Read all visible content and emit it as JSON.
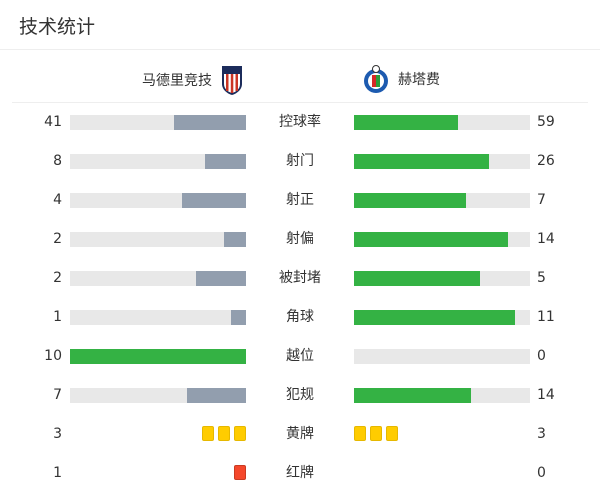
{
  "title": "技术统计",
  "home": {
    "name": "马德里竞技",
    "logo": "atletico-madrid-crest"
  },
  "away": {
    "name": "赫塔费",
    "logo": "getafe-crest"
  },
  "colors": {
    "lead": "#34b244",
    "trail": "#929eae",
    "track": "#e8e8e8",
    "yellow": "#ffcc00",
    "red": "#f5472b"
  },
  "stats": [
    {
      "label": "控球率",
      "home": "41",
      "away": "59"
    },
    {
      "label": "射门",
      "home": "8",
      "away": "26"
    },
    {
      "label": "射正",
      "home": "4",
      "away": "7"
    },
    {
      "label": "射偏",
      "home": "2",
      "away": "14"
    },
    {
      "label": "被封堵",
      "home": "2",
      "away": "5"
    },
    {
      "label": "角球",
      "home": "1",
      "away": "11"
    },
    {
      "label": "越位",
      "home": "10",
      "away": "0"
    },
    {
      "label": "犯规",
      "home": "7",
      "away": "14"
    }
  ],
  "cards": [
    {
      "label": "黄牌",
      "home": "3",
      "away": "3",
      "type": "yellow"
    },
    {
      "label": "红牌",
      "home": "1",
      "away": "0",
      "type": "red"
    }
  ]
}
